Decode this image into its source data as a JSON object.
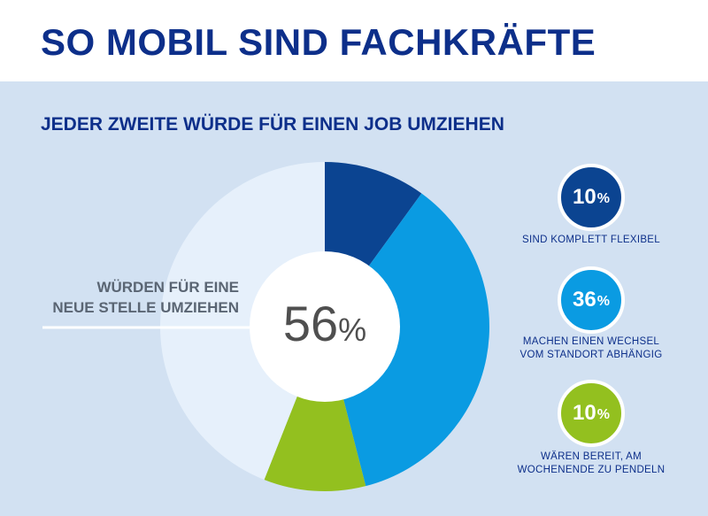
{
  "title": "SO MOBIL SIND FACHKRÄFTE",
  "subtitle": "JEDER ZWEITE WÜRDE FÜR EINEN JOB UMZIEHEN",
  "colors": {
    "title": "#0d2f8a",
    "background_panel": "#d2e1f2",
    "dark_blue": "#0b4491",
    "light_blue": "#0a9be2",
    "green": "#93c01f",
    "pale_blue": "#e6f0fb"
  },
  "chart_data": {
    "type": "pie",
    "title": "JEDER ZWEITE WÜRDE FÜR EINEN JOB UMZIEHEN",
    "center_value": "56",
    "center_unit": "%",
    "center_label": [
      "WÜRDEN FÜR EINE",
      "NEUE STELLE UMZIEHEN"
    ],
    "slices": [
      {
        "label": "SIND KOMPLETT FLEXIBEL",
        "value": 10,
        "color": "#0b4491"
      },
      {
        "label": "MACHEN EINEN WECHSEL VOM STANDORT ABHÄNGIG",
        "value": 36,
        "color": "#0a9be2"
      },
      {
        "label": "WÄREN BEREIT, AM WOCHENENDE ZU PENDELN",
        "value": 10,
        "color": "#93c01f"
      },
      {
        "label": "",
        "value": 44,
        "color": "#e6f0fb"
      }
    ]
  },
  "legend": [
    {
      "value": "10",
      "unit": "%",
      "lines": [
        "SIND KOMPLETT FLEXIBEL"
      ],
      "color": "#0b4491"
    },
    {
      "value": "36",
      "unit": "%",
      "lines": [
        "MACHEN EINEN WECHSEL",
        "VOM STANDORT ABHÄNGIG"
      ],
      "color": "#0a9be2"
    },
    {
      "value": "10",
      "unit": "%",
      "lines": [
        "WÄREN BEREIT, AM",
        "WOCHENENDE ZU PENDELN"
      ],
      "color": "#93c01f"
    }
  ]
}
